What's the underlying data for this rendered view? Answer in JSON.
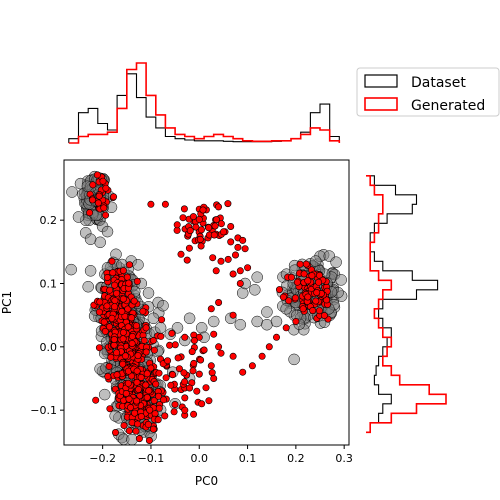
{
  "chart_data": {
    "type": "scatter",
    "xlabel": "PC0",
    "ylabel": "PC1",
    "xlim": [
      -0.28,
      0.31
    ],
    "ylim": [
      -0.155,
      0.295
    ],
    "xticks": [
      -0.2,
      -0.1,
      0.0,
      0.1,
      0.2,
      0.3
    ],
    "yticks": [
      -0.1,
      0.0,
      0.1,
      0.2
    ],
    "xtick_labels": [
      "−0.2",
      "−0.1",
      "0.0",
      "0.1",
      "0.2",
      "0.3"
    ],
    "ytick_labels": [
      "−0.1",
      "0.0",
      "0.1",
      "0.2"
    ],
    "legend_position": "right of top marginal",
    "colors": {
      "dataset": "#000000",
      "generated": "#ff0000"
    },
    "series": [
      {
        "name": "Dataset",
        "marker_color": "#808080",
        "clusters": [
          {
            "cx": -0.215,
            "cy": 0.235,
            "sx": 0.012,
            "sy": 0.02,
            "n": 170
          },
          {
            "cx": 0.235,
            "cy": 0.085,
            "sx": 0.025,
            "sy": 0.025,
            "n": 190
          },
          {
            "cx": -0.17,
            "cy": 0.07,
            "sx": 0.02,
            "sy": 0.03,
            "n": 150
          },
          {
            "cx": -0.15,
            "cy": 0.0,
            "sx": 0.022,
            "sy": 0.04,
            "n": 230
          },
          {
            "cx": -0.125,
            "cy": -0.08,
            "sx": 0.02,
            "sy": 0.03,
            "n": 200
          }
        ],
        "points": [
          [
            -0.265,
            0.122
          ],
          [
            -0.225,
            0.12
          ],
          [
            -0.19,
            0.125
          ],
          [
            -0.16,
            0.13
          ],
          [
            -0.12,
            0.1
          ],
          [
            -0.085,
            0.07
          ],
          [
            -0.08,
            0.03
          ],
          [
            -0.075,
            0.065
          ],
          [
            -0.095,
            0.045
          ],
          [
            -0.02,
            0.045
          ],
          [
            0.005,
            0.03
          ],
          [
            0.01,
            0.015
          ],
          [
            0.03,
            0.04
          ],
          [
            0.065,
            0.045
          ],
          [
            0.09,
            0.085
          ],
          [
            0.095,
            0.1
          ],
          [
            0.115,
            0.09
          ],
          [
            0.12,
            0.11
          ],
          [
            0.14,
            0.055
          ],
          [
            0.12,
            0.04
          ],
          [
            0.14,
            0.035
          ],
          [
            0.16,
            0.04
          ],
          [
            0.085,
            0.035
          ],
          [
            0.18,
            0.06
          ],
          [
            0.2,
            0.07
          ],
          [
            0.215,
            0.105
          ],
          [
            -0.045,
            0.03
          ],
          [
            -0.03,
            0.01
          ],
          [
            -0.06,
            0.02
          ],
          [
            -0.105,
            0.085
          ],
          [
            -0.23,
            0.095
          ],
          [
            -0.235,
            0.18
          ],
          [
            -0.235,
            0.2
          ],
          [
            -0.2,
            0.19
          ],
          [
            -0.205,
            0.165
          ],
          [
            -0.19,
            0.182
          ],
          [
            -0.25,
            0.205
          ],
          [
            -0.225,
            0.17
          ],
          [
            -0.055,
            -0.04
          ],
          [
            -0.02,
            -0.05
          ],
          [
            -0.05,
            -0.09
          ],
          [
            -0.1,
            -0.115
          ]
        ]
      },
      {
        "name": "Generated",
        "marker_color": "#ff0000",
        "clusters": [
          {
            "cx": -0.205,
            "cy": 0.24,
            "sx": 0.012,
            "sy": 0.018,
            "n": 30
          },
          {
            "cx": 0.235,
            "cy": 0.085,
            "sx": 0.022,
            "sy": 0.022,
            "n": 90
          },
          {
            "cx": -0.17,
            "cy": 0.07,
            "sx": 0.018,
            "sy": 0.03,
            "n": 130
          },
          {
            "cx": -0.15,
            "cy": 0.0,
            "sx": 0.02,
            "sy": 0.04,
            "n": 240
          },
          {
            "cx": -0.12,
            "cy": -0.08,
            "sx": 0.018,
            "sy": 0.03,
            "n": 160
          },
          {
            "cx": 0.01,
            "cy": 0.19,
            "sx": 0.03,
            "sy": 0.02,
            "n": 55
          },
          {
            "cx": -0.05,
            "cy": -0.04,
            "sx": 0.03,
            "sy": 0.035,
            "n": 55
          }
        ],
        "points": [
          [
            -0.1,
            0.225
          ],
          [
            -0.07,
            0.225
          ],
          [
            0.065,
            0.19
          ],
          [
            0.08,
            0.172
          ],
          [
            0.09,
            0.168
          ],
          [
            0.08,
            0.157
          ],
          [
            0.095,
            0.155
          ],
          [
            0.06,
            0.138
          ],
          [
            0.075,
            0.145
          ],
          [
            0.045,
            0.135
          ],
          [
            0.035,
            0.12
          ],
          [
            0.1,
            0.125
          ],
          [
            0.085,
            0.12
          ],
          [
            0.07,
            0.115
          ],
          [
            0.085,
            0.1
          ],
          [
            0.04,
            0.07
          ],
          [
            0.025,
            0.06
          ],
          [
            0.07,
            0.05
          ],
          [
            0.03,
            0.02
          ],
          [
            0.0,
            0.015
          ],
          [
            -0.01,
            0.01
          ],
          [
            -0.03,
            0.015
          ],
          [
            0.01,
            -0.005
          ],
          [
            0.045,
            -0.01
          ],
          [
            0.07,
            -0.015
          ],
          [
            0.09,
            -0.04
          ],
          [
            0.11,
            -0.03
          ],
          [
            0.13,
            -0.015
          ],
          [
            0.145,
            0.0
          ],
          [
            0.16,
            0.015
          ],
          [
            0.18,
            0.03
          ],
          [
            0.2,
            0.04
          ],
          [
            0.215,
            0.06
          ],
          [
            0.04,
            0.0
          ],
          [
            0.025,
            -0.03
          ],
          [
            0.03,
            -0.05
          ],
          [
            -0.02,
            -0.065
          ],
          [
            -0.005,
            -0.07
          ],
          [
            0.02,
            -0.085
          ],
          [
            -0.035,
            -0.095
          ],
          [
            -0.03,
            -0.1
          ],
          [
            0.005,
            -0.09
          ],
          [
            -0.12,
            -0.11
          ],
          [
            -0.095,
            -0.13
          ],
          [
            -0.085,
            -0.115
          ],
          [
            -0.11,
            0.03
          ],
          [
            -0.095,
            0.01
          ]
        ]
      }
    ],
    "marginal_x": {
      "bin_edges": [
        -0.27,
        -0.25,
        -0.23,
        -0.21,
        -0.19,
        -0.17,
        -0.15,
        -0.13,
        -0.11,
        -0.09,
        -0.07,
        -0.05,
        -0.03,
        -0.01,
        0.01,
        0.03,
        0.05,
        0.07,
        0.09,
        0.11,
        0.13,
        0.15,
        0.17,
        0.19,
        0.21,
        0.23,
        0.25,
        0.27,
        0.29
      ],
      "dataset": [
        0.1,
        0.7,
        0.8,
        0.45,
        0.3,
        1.1,
        1.6,
        1.05,
        0.6,
        0.35,
        0.15,
        0.1,
        0.07,
        0.05,
        0.05,
        0.05,
        0.04,
        0.03,
        0.03,
        0.03,
        0.03,
        0.04,
        0.05,
        0.1,
        0.25,
        0.7,
        0.9,
        0.15
      ],
      "generated": [
        0,
        0.15,
        0.2,
        0.2,
        0.25,
        0.8,
        1.7,
        1.85,
        1.1,
        0.65,
        0.35,
        0.2,
        0.15,
        0.1,
        0.15,
        0.2,
        0.15,
        0.1,
        0.05,
        0.04,
        0.04,
        0.05,
        0.05,
        0.1,
        0.2,
        0.35,
        0.3,
        0.05
      ]
    },
    "marginal_y": {
      "bin_edges": [
        -0.135,
        -0.12,
        -0.105,
        -0.09,
        -0.075,
        -0.06,
        -0.045,
        -0.03,
        -0.015,
        0.0,
        0.015,
        0.03,
        0.045,
        0.06,
        0.075,
        0.09,
        0.105,
        0.12,
        0.135,
        0.15,
        0.165,
        0.18,
        0.195,
        0.21,
        0.225,
        0.24,
        0.255,
        0.27
      ],
      "dataset": [
        0.05,
        0.15,
        0.2,
        0.3,
        0.15,
        0.1,
        0.12,
        0.15,
        0.2,
        0.25,
        0.3,
        0.2,
        0.15,
        0.2,
        0.6,
        0.85,
        0.55,
        0.2,
        0.1,
        0.05,
        0.05,
        0.1,
        0.25,
        0.55,
        0.6,
        0.35,
        0.1
      ],
      "generated": [
        0.05,
        0.3,
        0.6,
        0.95,
        0.75,
        0.4,
        0.3,
        0.2,
        0.25,
        0.3,
        0.2,
        0.15,
        0.1,
        0.15,
        0.2,
        0.3,
        0.15,
        0.05,
        0.05,
        0.05,
        0.1,
        0.15,
        0.15,
        0.2,
        0.2,
        0.1,
        0.05
      ]
    },
    "legend": {
      "entries": [
        "Dataset",
        "Generated"
      ]
    }
  }
}
